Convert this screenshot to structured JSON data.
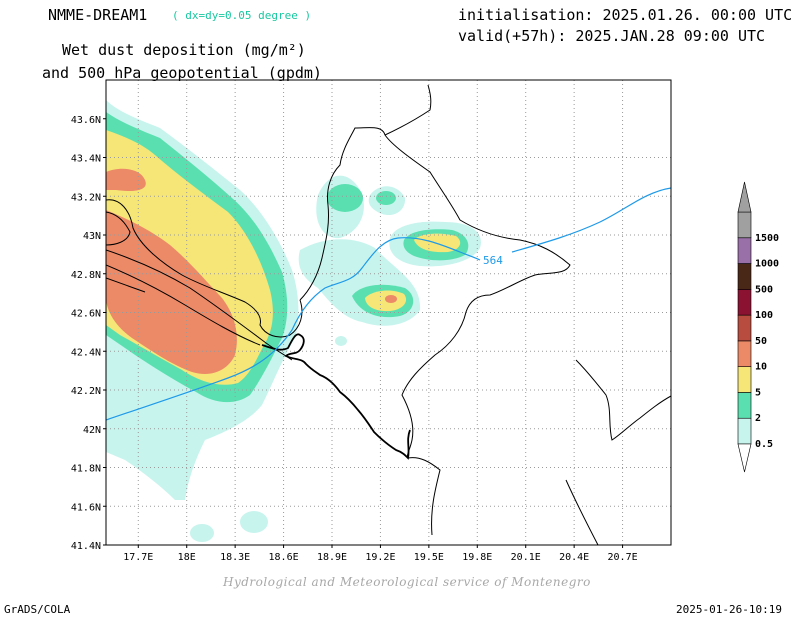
{
  "header": {
    "model": "NMME-DREAM1",
    "resolution": "( dx=dy=0.05 degree )",
    "init": "initialisation: 2025.01.26. 00:00 UTC",
    "valid": "valid(+57h): 2025.JAN.28 09:00 UTC",
    "title_line1": "Wet dust deposition (mg/m²)",
    "title_line2": "and 500 hPa geopotential (gpdm)"
  },
  "map": {
    "lat_labels": [
      "43.6N",
      "43.4N",
      "43.2N",
      "43N",
      "42.8N",
      "42.6N",
      "42.4N",
      "42.2N",
      "42N",
      "41.8N",
      "41.6N",
      "41.4N"
    ],
    "lat_values": [
      43.6,
      43.4,
      43.2,
      43.0,
      42.8,
      42.6,
      42.4,
      42.2,
      42.0,
      41.8,
      41.6,
      41.4
    ],
    "lon_labels": [
      "17.7E",
      "18E",
      "18.3E",
      "18.6E",
      "18.9E",
      "19.2E",
      "19.5E",
      "19.8E",
      "20.1E",
      "20.4E",
      "20.7E"
    ],
    "lon_values": [
      17.7,
      18.0,
      18.3,
      18.6,
      18.9,
      19.2,
      19.5,
      19.8,
      20.1,
      20.4,
      20.7
    ],
    "contour_label": "564"
  },
  "legend": {
    "levels": [
      "0.5",
      "2",
      "5",
      "10",
      "50",
      "100",
      "500",
      "1000",
      "1500"
    ],
    "colors": [
      "#c8f4ee",
      "#5ae0b0",
      "#f6e678",
      "#ec8a68",
      "#b84c3e",
      "#8c1232",
      "#4a2818",
      "#9a70a8",
      "#a0a0a0"
    ]
  },
  "footer": {
    "credit": "Hydrological and Meteorological service of Montenegro",
    "software": "GrADS/COLA",
    "timestamp": "2025-01-26-10:19"
  }
}
